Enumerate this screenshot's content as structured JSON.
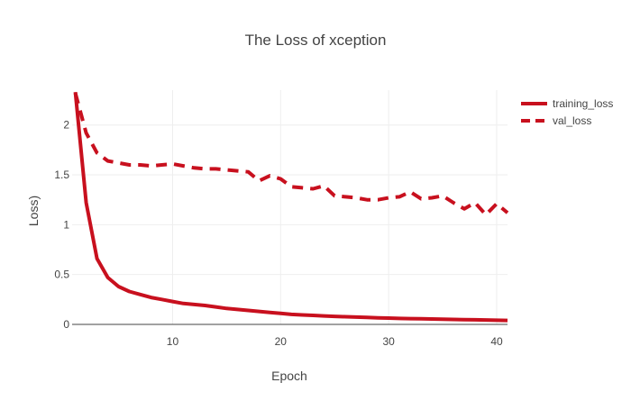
{
  "chart_data": {
    "type": "line",
    "title": "The Loss of xception",
    "xlabel": "Epoch",
    "ylabel": "Loss)",
    "xlim": [
      0.7,
      41
    ],
    "ylim": [
      0,
      2.35
    ],
    "xticks": [
      10,
      20,
      30,
      40
    ],
    "yticks": [
      0,
      0.5,
      1,
      1.5,
      2
    ],
    "ytick_labels": [
      "0",
      "0.5",
      "1",
      "1.5",
      "2"
    ],
    "grid": true,
    "legend_position": "top-right",
    "series": [
      {
        "name": "training_loss",
        "color": "#c8101e",
        "dash": "solid",
        "x": [
          1,
          2,
          3,
          4,
          5,
          6,
          7,
          8,
          9,
          10,
          11,
          12,
          13,
          14,
          15,
          16,
          17,
          18,
          19,
          20,
          21,
          22,
          23,
          24,
          25,
          26,
          27,
          28,
          29,
          30,
          31,
          32,
          33,
          34,
          35,
          36,
          37,
          38,
          39,
          40,
          41
        ],
        "y": [
          2.33,
          1.22,
          0.66,
          0.47,
          0.38,
          0.33,
          0.3,
          0.27,
          0.25,
          0.23,
          0.21,
          0.2,
          0.19,
          0.175,
          0.16,
          0.15,
          0.14,
          0.13,
          0.12,
          0.11,
          0.1,
          0.095,
          0.09,
          0.085,
          0.08,
          0.077,
          0.073,
          0.07,
          0.066,
          0.063,
          0.06,
          0.058,
          0.056,
          0.054,
          0.052,
          0.05,
          0.048,
          0.046,
          0.044,
          0.042,
          0.04
        ]
      },
      {
        "name": "val_loss",
        "color": "#c8101e",
        "dash": "dashed",
        "x": [
          1,
          2,
          3,
          4,
          5,
          6,
          7,
          8,
          9,
          10,
          11,
          12,
          13,
          14,
          15,
          16,
          17,
          18,
          19,
          20,
          21,
          22,
          23,
          24,
          25,
          26,
          27,
          28,
          29,
          30,
          31,
          32,
          33,
          34,
          35,
          36,
          37,
          38,
          39,
          40,
          41
        ],
        "y": [
          2.32,
          1.92,
          1.72,
          1.64,
          1.62,
          1.6,
          1.6,
          1.59,
          1.6,
          1.61,
          1.59,
          1.57,
          1.56,
          1.56,
          1.55,
          1.54,
          1.53,
          1.44,
          1.49,
          1.46,
          1.38,
          1.37,
          1.36,
          1.39,
          1.29,
          1.28,
          1.27,
          1.25,
          1.25,
          1.27,
          1.28,
          1.33,
          1.26,
          1.27,
          1.29,
          1.22,
          1.16,
          1.22,
          1.1,
          1.21,
          1.12
        ]
      }
    ]
  }
}
